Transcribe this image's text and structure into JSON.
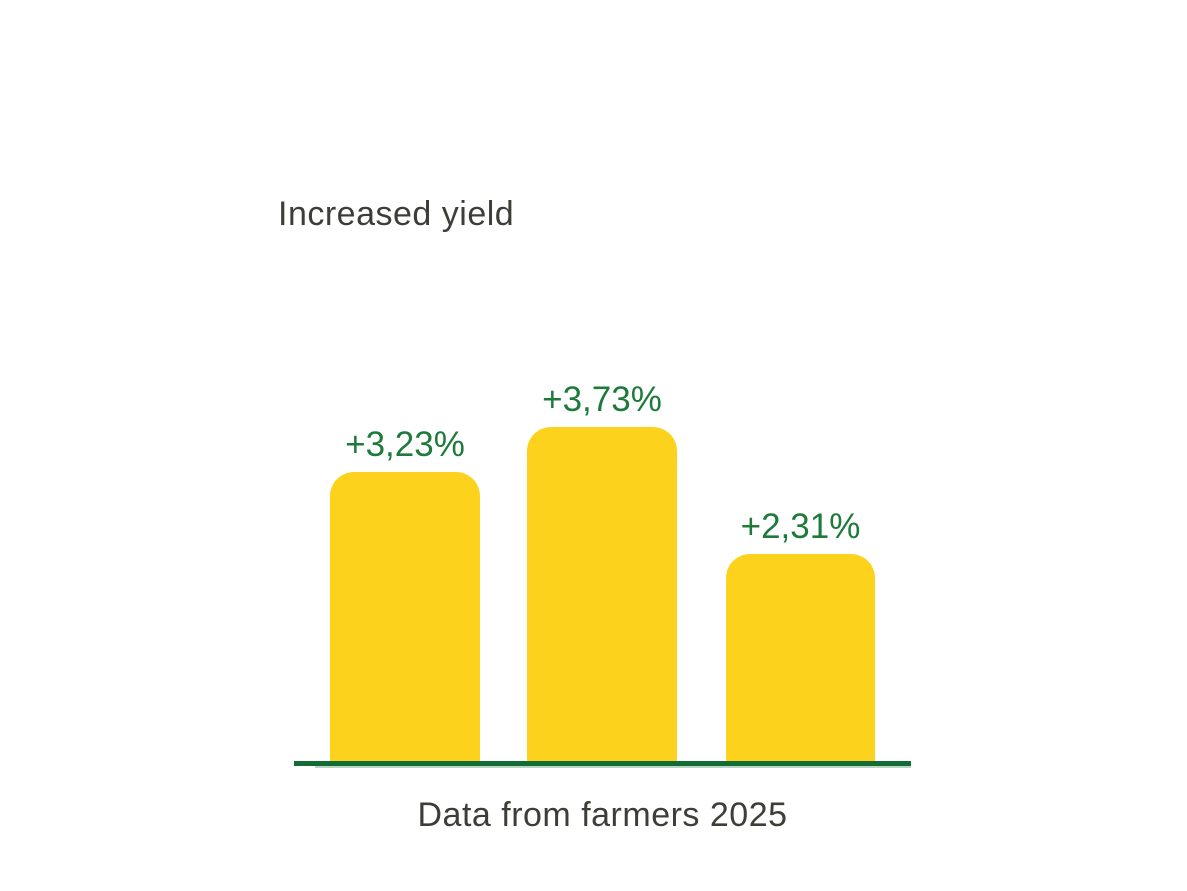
{
  "chart_data": {
    "type": "bar",
    "title": "Increased yield",
    "caption": "Data from farmers 2025",
    "values": [
      3.23,
      3.73,
      2.31
    ],
    "value_labels": [
      "+3,23%",
      "+3,73%",
      "+2,31%"
    ],
    "xlabel": "",
    "ylabel": "",
    "ylim": [
      0,
      4
    ],
    "grid": false,
    "legend": false,
    "x_axis_tick_labels": [],
    "colors": {
      "bar": "#FCD21D",
      "axis_line": "#146C35",
      "value_label": "#1E7A3B",
      "text": "#3E3E38",
      "background": "#FFFFFF"
    }
  }
}
